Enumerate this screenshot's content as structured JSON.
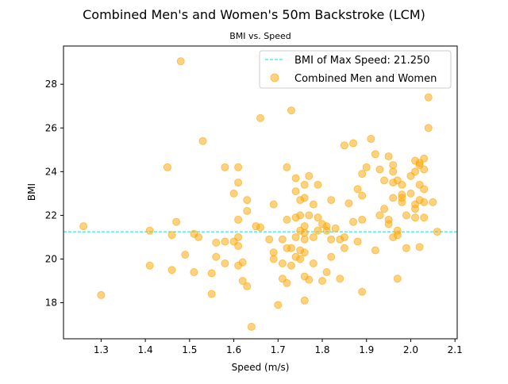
{
  "chart_data": {
    "type": "scatter",
    "title": "Combined Men's and Women's 50m Backstroke (LCM)",
    "subtitle": "BMI vs. Speed",
    "xlabel": "Speed (m/s)",
    "ylabel": "BMI",
    "xlim": [
      1.215,
      2.105
    ],
    "ylim": [
      16.35,
      29.75
    ],
    "xticks": [
      1.3,
      1.4,
      1.5,
      1.6,
      1.7,
      1.8,
      1.9,
      2.0,
      2.1
    ],
    "xtick_labels": [
      "1.3",
      "1.4",
      "1.5",
      "1.6",
      "1.7",
      "1.8",
      "1.9",
      "2.0",
      "2.1"
    ],
    "yticks": [
      18,
      20,
      22,
      24,
      26,
      28
    ],
    "ytick_labels": [
      "18",
      "20",
      "22",
      "24",
      "26",
      "28"
    ],
    "grid": false,
    "legend": {
      "placement": "top-right",
      "entries": [
        {
          "label": "BMI of Max Speed: 21.250",
          "kind": "line",
          "color": "#00e5e5"
        },
        {
          "label": "Combined Men and Women",
          "kind": "marker",
          "color": "#ffa500"
        }
      ]
    },
    "hline": {
      "y": 21.25,
      "color": "#00e5e5",
      "style": "dashed"
    },
    "series": [
      {
        "name": "Combined Men and Women",
        "color": "#ffa500",
        "points": [
          [
            1.26,
            21.5
          ],
          [
            1.3,
            18.35
          ],
          [
            1.41,
            21.3
          ],
          [
            1.41,
            19.7
          ],
          [
            1.45,
            24.2
          ],
          [
            1.46,
            19.5
          ],
          [
            1.46,
            21.1
          ],
          [
            1.47,
            21.7
          ],
          [
            1.48,
            29.05
          ],
          [
            1.49,
            20.2
          ],
          [
            1.51,
            21.15
          ],
          [
            1.51,
            19.4
          ],
          [
            1.52,
            21.0
          ],
          [
            1.53,
            25.4
          ],
          [
            1.55,
            18.4
          ],
          [
            1.55,
            19.35
          ],
          [
            1.56,
            20.1
          ],
          [
            1.56,
            20.75
          ],
          [
            1.58,
            24.2
          ],
          [
            1.58,
            20.8
          ],
          [
            1.58,
            19.8
          ],
          [
            1.6,
            23.0
          ],
          [
            1.6,
            20.8
          ],
          [
            1.61,
            23.5
          ],
          [
            1.61,
            24.2
          ],
          [
            1.61,
            21.8
          ],
          [
            1.61,
            21.0
          ],
          [
            1.61,
            20.6
          ],
          [
            1.61,
            19.7
          ],
          [
            1.62,
            19.85
          ],
          [
            1.62,
            19.0
          ],
          [
            1.63,
            22.7
          ],
          [
            1.63,
            22.2
          ],
          [
            1.63,
            18.75
          ],
          [
            1.64,
            16.9
          ],
          [
            1.65,
            21.5
          ],
          [
            1.66,
            21.45
          ],
          [
            1.66,
            26.45
          ],
          [
            1.68,
            20.9
          ],
          [
            1.69,
            22.5
          ],
          [
            1.69,
            20.3
          ],
          [
            1.69,
            20.0
          ],
          [
            1.7,
            17.9
          ],
          [
            1.71,
            20.9
          ],
          [
            1.71,
            19.8
          ],
          [
            1.71,
            19.1
          ],
          [
            1.72,
            24.2
          ],
          [
            1.72,
            21.8
          ],
          [
            1.72,
            20.5
          ],
          [
            1.72,
            18.9
          ],
          [
            1.73,
            20.5
          ],
          [
            1.73,
            19.7
          ],
          [
            1.73,
            26.8
          ],
          [
            1.74,
            23.7
          ],
          [
            1.74,
            23.1
          ],
          [
            1.74,
            21.9
          ],
          [
            1.74,
            21.0
          ],
          [
            1.74,
            20.1
          ],
          [
            1.75,
            22.7
          ],
          [
            1.75,
            22.0
          ],
          [
            1.75,
            21.3
          ],
          [
            1.75,
            20.4
          ],
          [
            1.75,
            20.0
          ],
          [
            1.76,
            23.4
          ],
          [
            1.76,
            22.8
          ],
          [
            1.76,
            21.5
          ],
          [
            1.76,
            21.2
          ],
          [
            1.76,
            20.9
          ],
          [
            1.76,
            20.3
          ],
          [
            1.76,
            19.2
          ],
          [
            1.76,
            18.1
          ],
          [
            1.77,
            23.8
          ],
          [
            1.77,
            22.0
          ],
          [
            1.77,
            19.05
          ],
          [
            1.78,
            22.5
          ],
          [
            1.78,
            21.0
          ],
          [
            1.78,
            19.8
          ],
          [
            1.79,
            21.9
          ],
          [
            1.79,
            21.3
          ],
          [
            1.79,
            23.4
          ],
          [
            1.8,
            21.6
          ],
          [
            1.8,
            19.0
          ],
          [
            1.81,
            21.5
          ],
          [
            1.81,
            21.3
          ],
          [
            1.81,
            19.4
          ],
          [
            1.82,
            22.7
          ],
          [
            1.82,
            20.9
          ],
          [
            1.82,
            20.1
          ],
          [
            1.83,
            21.4
          ],
          [
            1.84,
            19.1
          ],
          [
            1.84,
            20.9
          ],
          [
            1.85,
            21.0
          ],
          [
            1.85,
            20.5
          ],
          [
            1.85,
            25.2
          ],
          [
            1.86,
            22.55
          ],
          [
            1.87,
            25.3
          ],
          [
            1.87,
            21.7
          ],
          [
            1.88,
            23.2
          ],
          [
            1.88,
            20.8
          ],
          [
            1.89,
            22.9
          ],
          [
            1.89,
            23.9
          ],
          [
            1.89,
            21.8
          ],
          [
            1.89,
            18.5
          ],
          [
            1.9,
            24.2
          ],
          [
            1.91,
            25.5
          ],
          [
            1.92,
            24.8
          ],
          [
            1.92,
            20.4
          ],
          [
            1.93,
            24.1
          ],
          [
            1.93,
            22.0
          ],
          [
            1.94,
            22.3
          ],
          [
            1.94,
            23.6
          ],
          [
            1.95,
            24.7
          ],
          [
            1.95,
            21.8
          ],
          [
            1.95,
            21.6
          ],
          [
            1.96,
            24.3
          ],
          [
            1.96,
            24.0
          ],
          [
            1.96,
            23.5
          ],
          [
            1.96,
            22.8
          ],
          [
            1.96,
            21.0
          ],
          [
            1.97,
            21.3
          ],
          [
            1.97,
            21.1
          ],
          [
            1.97,
            19.1
          ],
          [
            1.97,
            23.6
          ],
          [
            1.98,
            23.4
          ],
          [
            1.98,
            22.6
          ],
          [
            1.98,
            22.8
          ],
          [
            1.98,
            22.95
          ],
          [
            1.99,
            20.5
          ],
          [
            1.99,
            22.0
          ],
          [
            2.0,
            23.0
          ],
          [
            2.0,
            23.8
          ],
          [
            2.01,
            24.0
          ],
          [
            2.01,
            24.5
          ],
          [
            2.01,
            22.3
          ],
          [
            2.01,
            22.5
          ],
          [
            2.01,
            21.9
          ],
          [
            2.02,
            23.4
          ],
          [
            2.02,
            22.7
          ],
          [
            2.02,
            20.55
          ],
          [
            2.02,
            24.4
          ],
          [
            2.02,
            24.3
          ],
          [
            2.03,
            24.6
          ],
          [
            2.03,
            24.1
          ],
          [
            2.03,
            23.2
          ],
          [
            2.03,
            22.6
          ],
          [
            2.03,
            21.9
          ],
          [
            2.04,
            27.4
          ],
          [
            2.04,
            26.0
          ],
          [
            2.05,
            22.6
          ],
          [
            2.06,
            21.25
          ]
        ]
      }
    ]
  }
}
